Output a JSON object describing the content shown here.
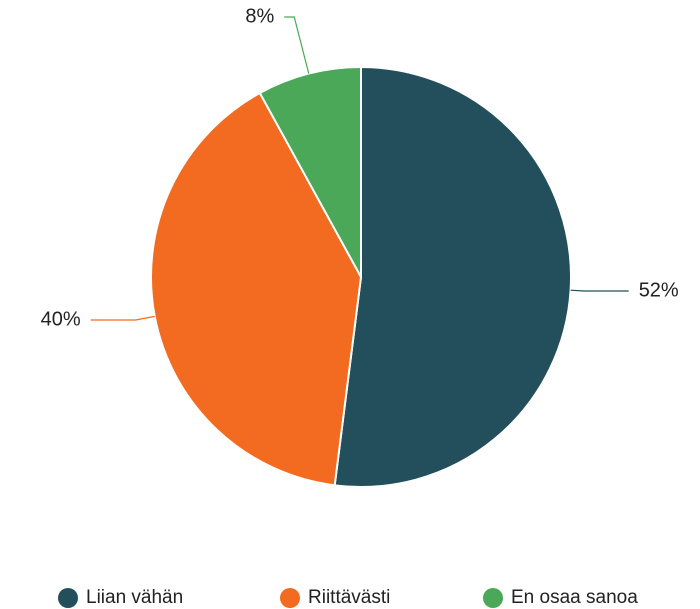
{
  "chart_data": {
    "type": "pie",
    "categories": [
      "Liian vähän",
      "Riittävästi",
      "En osaa sanoa"
    ],
    "values": [
      52,
      40,
      8
    ],
    "value_labels": [
      "52%",
      "40%",
      "8%"
    ],
    "colors": [
      "#234e5c",
      "#f26b21",
      "#4aa858"
    ],
    "legend": "bottom"
  }
}
